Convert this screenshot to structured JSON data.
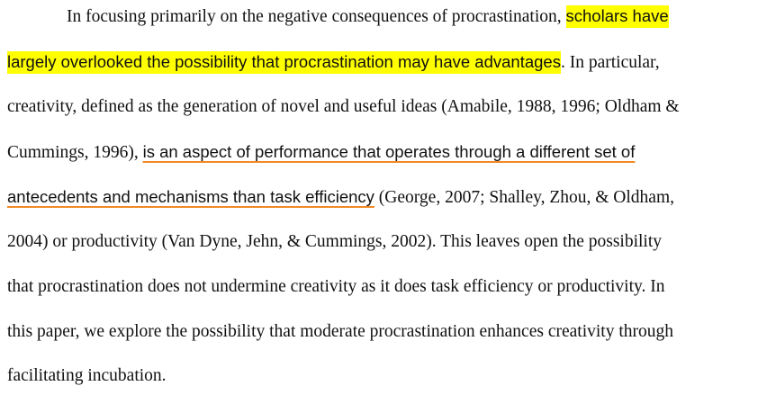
{
  "paragraph": {
    "line0": {
      "before": "In focusing primarily on the negative consequences of procrastination, ",
      "highlight": "scholars have"
    },
    "line1": {
      "highlight": "largely overlooked the possibility that procrastination may have advantages",
      "after": ". In particular,"
    },
    "line2": "creativity, defined as the generation of novel and useful ideas (Amabile, 1988, 1996; Oldham &",
    "line3": {
      "before": "Cummings, 1996), ",
      "underline": "is an aspect of performance that operates through a different set of "
    },
    "line4": {
      "underline": "antecedents and mechanisms than task efficiency",
      "after": " (George, 2007; Shalley, Zhou, & Oldham,"
    },
    "line5": "2004) or productivity (Van Dyne, Jehn, & Cummings, 2002). This leaves open the possibility",
    "line6": "that procrastination does not undermine creativity as it does task efficiency or productivity. In",
    "line7": "this paper, we explore the possibility that moderate procrastination enhances creativity through",
    "line8": "facilitating incubation."
  },
  "colors": {
    "highlight": "#ffff00",
    "underline": "#f08a24",
    "text": "#111111",
    "background": "#ffffff"
  }
}
